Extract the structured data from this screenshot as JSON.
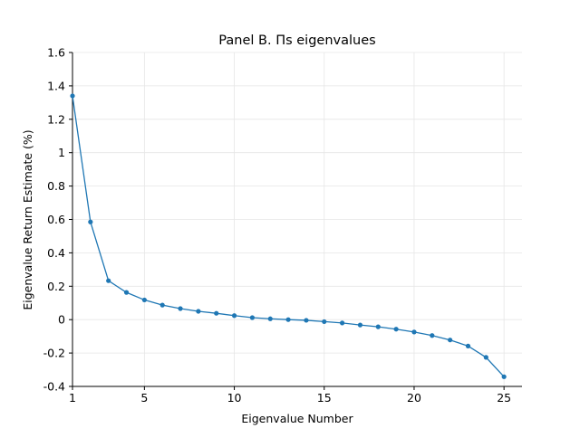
{
  "chart_data": {
    "type": "line",
    "title": "Panel B. Πs eigenvalues",
    "xlabel": "Eigenvalue Number",
    "ylabel": "Eigenvalue Return Estimate (%)",
    "xlim": [
      1,
      26
    ],
    "ylim": [
      -0.4,
      1.6
    ],
    "xticks": [
      1,
      5,
      10,
      15,
      20,
      25
    ],
    "xtick_labels": [
      "1",
      "5",
      "10",
      "15",
      "20",
      "25"
    ],
    "yticks": [
      -0.4,
      -0.2,
      0,
      0.2,
      0.4,
      0.6,
      0.8,
      1,
      1.2,
      1.4,
      1.6
    ],
    "ytick_labels": [
      "-0.4",
      "-0.2",
      "0",
      "0.2",
      "0.4",
      "0.6",
      "0.8",
      "1",
      "1.2",
      "1.4",
      "1.6"
    ],
    "grid": true,
    "series": [
      {
        "color": "#1f77b4",
        "x": [
          1,
          2,
          3,
          4,
          5,
          6,
          7,
          8,
          9,
          10,
          11,
          12,
          13,
          14,
          15,
          16,
          17,
          18,
          19,
          20,
          21,
          22,
          23,
          24,
          25
        ],
        "values": [
          1.34,
          0.585,
          0.233,
          0.163,
          0.118,
          0.087,
          0.066,
          0.05,
          0.038,
          0.024,
          0.012,
          0.005,
          0.0,
          -0.004,
          -0.012,
          -0.02,
          -0.032,
          -0.043,
          -0.057,
          -0.074,
          -0.095,
          -0.122,
          -0.158,
          -0.226,
          -0.342
        ]
      }
    ]
  }
}
